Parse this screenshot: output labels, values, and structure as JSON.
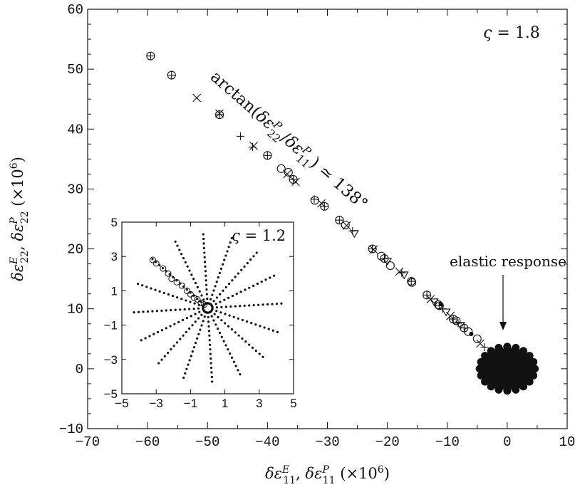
{
  "chart_data": [
    {
      "type": "scatter",
      "title": "",
      "xlabel": "δε11E, δε11P (×10⁶)",
      "ylabel": "δε22E, δε22P (×10⁶)",
      "xlim": [
        -70,
        10
      ],
      "ylim": [
        -10,
        60
      ],
      "xticks": [
        -70,
        -60,
        -50,
        -40,
        -30,
        -20,
        -10,
        0,
        10
      ],
      "yticks": [
        -10,
        0,
        10,
        20,
        30,
        40,
        50,
        60
      ],
      "grid": false,
      "legend": "none",
      "annotations": {
        "zeta": "ς = 1.8",
        "angle": "arctan(δε22P/δε11P) ≃ 138°",
        "elastic": "elastic response"
      },
      "series": [
        {
          "marker": "circle-plus",
          "values": [
            [
              -59.5,
              52.2
            ],
            [
              -56,
              49
            ],
            [
              -48,
              42.4
            ],
            [
              -40,
              35.6
            ],
            [
              -35.7,
              31.6
            ],
            [
              -30.5,
              27.1
            ],
            [
              -28,
              24.8
            ],
            [
              -22.5,
              20
            ],
            [
              -20.5,
              18.4
            ],
            [
              -16,
              14.6
            ],
            [
              -13.4,
              12.3
            ],
            [
              -11.3,
              10.5
            ],
            [
              -9,
              8.3
            ],
            [
              -7.2,
              6.8
            ]
          ]
        },
        {
          "marker": "x",
          "values": [
            [
              -51.8,
              45.2
            ],
            [
              -48,
              42.6
            ],
            [
              -42.3,
              37.2
            ],
            [
              -36.7,
              32.5
            ],
            [
              -35.3,
              31.2
            ],
            [
              -31,
              27.6
            ],
            [
              -26.8,
              23.9
            ],
            [
              -22.3,
              19.9
            ],
            [
              -18,
              16.2
            ],
            [
              -12.8,
              11.6
            ],
            [
              -9.5,
              8.8
            ],
            [
              -4.5,
              4.2
            ]
          ]
        },
        {
          "marker": "plus",
          "values": [
            [
              -44.5,
              38.8
            ],
            [
              -42.5,
              37
            ],
            [
              -32.2,
              28.3
            ],
            [
              -25.8,
              23
            ],
            [
              -17.6,
              16
            ],
            [
              -10.8,
              10
            ],
            [
              -8.2,
              7.6
            ],
            [
              -3.8,
              3.6
            ]
          ]
        },
        {
          "marker": "circle",
          "values": [
            [
              -37.7,
              33.4
            ],
            [
              -36.5,
              32.8
            ],
            [
              -32.1,
              28.1
            ],
            [
              -27,
              24
            ],
            [
              -21,
              18.8
            ],
            [
              -19.5,
              17.2
            ],
            [
              -15.9,
              14.4
            ],
            [
              -11.5,
              10.7
            ],
            [
              -8.5,
              8
            ],
            [
              -6.5,
              6.2
            ],
            [
              -5,
              5
            ]
          ]
        },
        {
          "marker": "triangle-down",
          "values": [
            [
              -25.5,
              22.6
            ],
            [
              -20,
              18
            ],
            [
              -17.2,
              15.7
            ],
            [
              -12.2,
              11.2
            ],
            [
              -10.2,
              9.5
            ],
            [
              -7.8,
              7.3
            ]
          ]
        },
        {
          "marker": "dot",
          "values": [
            [
              -11.1,
              10.8
            ],
            [
              -6,
              5.8
            ],
            [
              -2,
              1.5
            ]
          ]
        }
      ],
      "elastic_cluster": {
        "center": [
          0,
          0
        ],
        "num_rays": 20,
        "x_radius": 5,
        "y_radius": 4
      }
    },
    {
      "type": "scatter",
      "title": "",
      "xlabel": "",
      "ylabel": "",
      "xlim": [
        -5,
        5
      ],
      "ylim": [
        -5,
        5
      ],
      "xticks": [
        -5,
        -3,
        -1,
        1,
        3,
        5
      ],
      "yticks": [
        -5,
        -3,
        -1,
        1,
        3,
        5
      ],
      "annotations": {
        "zeta": "ς = 1.2"
      },
      "rays": {
        "center": [
          0,
          0
        ],
        "num_rays": 16,
        "max_radius": 4.3,
        "points_per_ray": 16
      },
      "plastic_path": [
        [
          -3.2,
          2.8
        ],
        [
          -3,
          2.6
        ],
        [
          -2.6,
          2.3
        ],
        [
          -2.3,
          2
        ],
        [
          -2.1,
          1.7
        ],
        [
          -1.8,
          1.5
        ],
        [
          -1.5,
          1.3
        ],
        [
          -1.2,
          1
        ],
        [
          -1,
          0.8
        ],
        [
          -0.8,
          0.6
        ],
        [
          -0.6,
          0.5
        ],
        [
          -0.4,
          0.3
        ],
        [
          -0.2,
          0.2
        ]
      ]
    }
  ]
}
